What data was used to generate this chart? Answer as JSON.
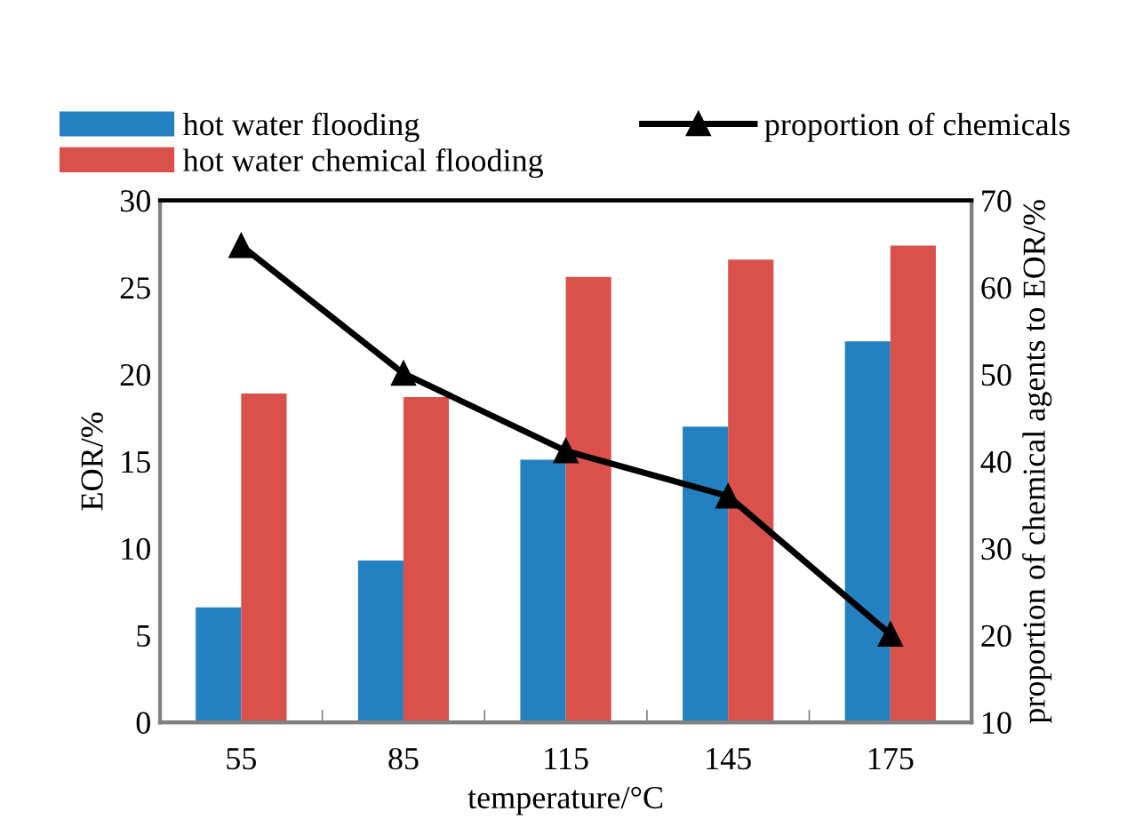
{
  "chart_data": {
    "type": "bar",
    "xlabel": "temperature/°C",
    "ylabel": "EOR/%",
    "y2label": "proportion of chemical agents to EOR/%",
    "categories": [
      "55",
      "85",
      "115",
      "145",
      "175"
    ],
    "series": [
      {
        "name": "hot water flooding",
        "color": "#2481c1",
        "values": [
          6.6,
          9.3,
          15.1,
          17.0,
          21.9
        ]
      },
      {
        "name": "hot water chemical flooding",
        "color": "#da504b",
        "values": [
          18.9,
          18.7,
          25.6,
          26.6,
          27.4
        ]
      },
      {
        "name": "proportion of chemicals",
        "type": "line",
        "axis": "y2",
        "color": "#000000",
        "marker": "triangle",
        "line_style": "solid",
        "values": [
          64.8,
          50.1,
          41.2,
          36.0,
          20.1
        ]
      }
    ],
    "ylim": [
      0,
      30
    ],
    "yticks": [
      0,
      5,
      10,
      15,
      20,
      25,
      30
    ],
    "y2lim": [
      10,
      70
    ],
    "y2ticks": [
      10,
      20,
      30,
      40,
      50,
      60,
      70
    ],
    "grid": false,
    "legend": "top"
  }
}
